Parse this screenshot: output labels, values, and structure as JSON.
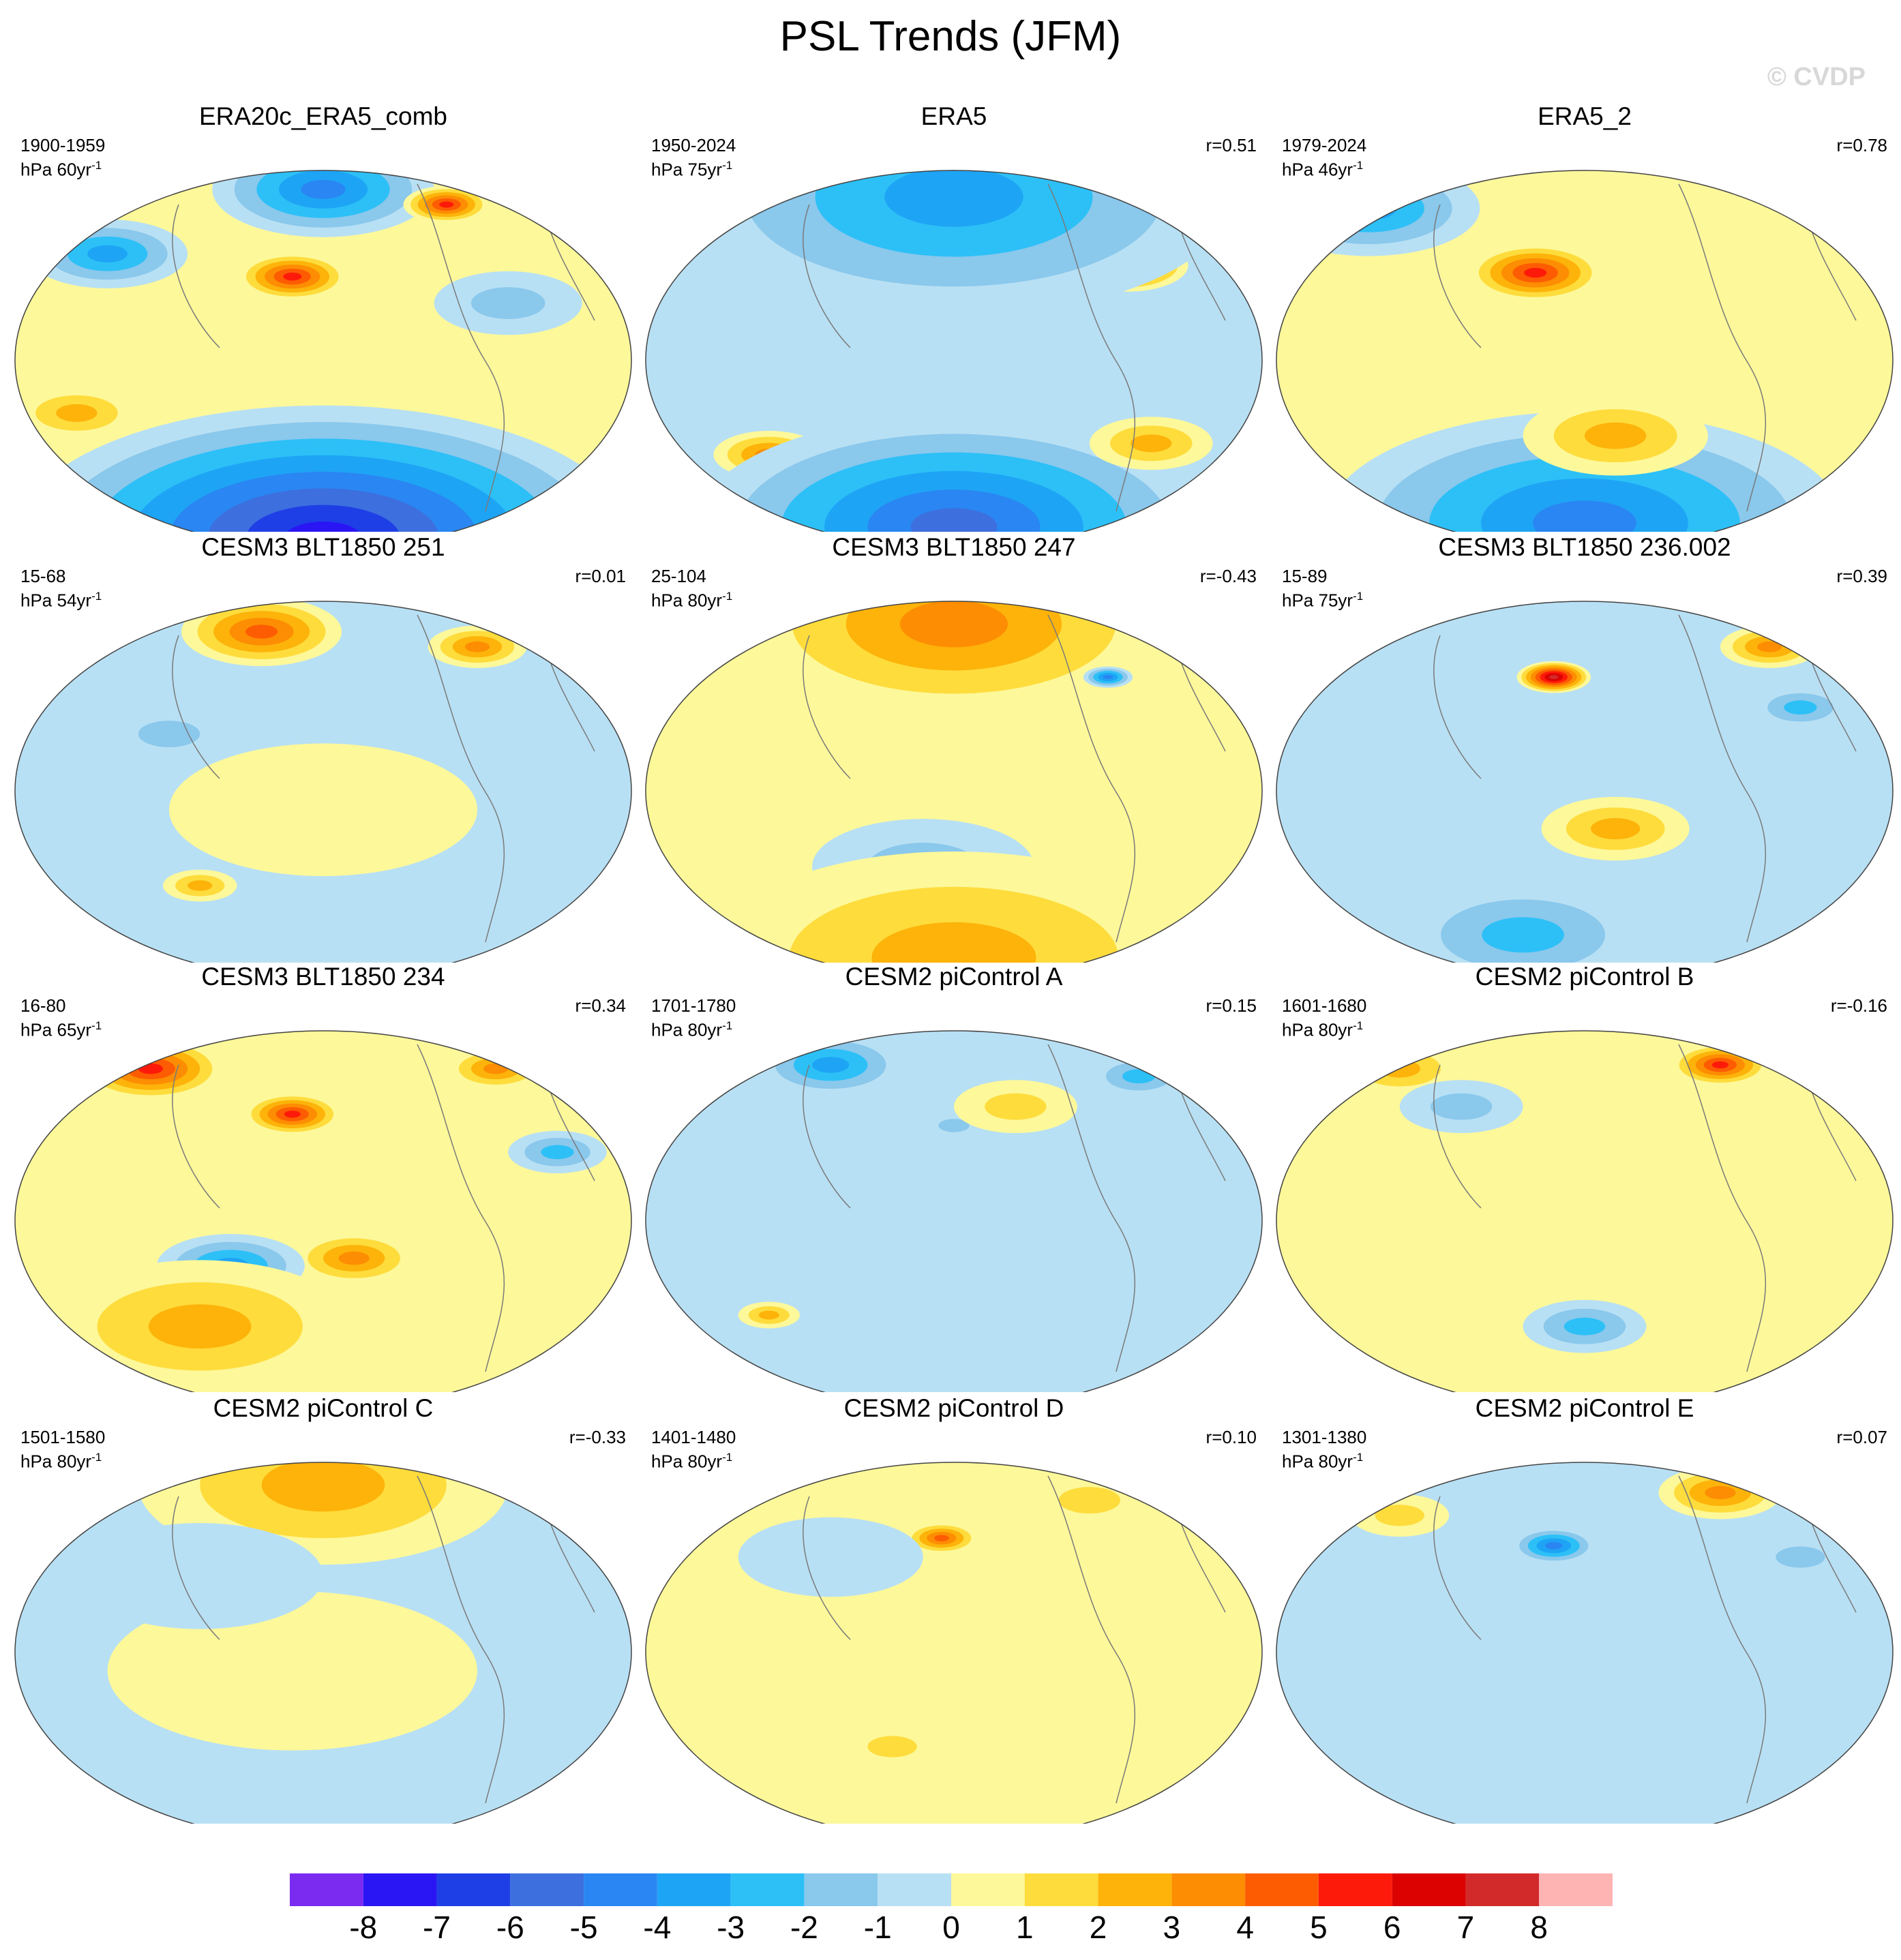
{
  "title": "PSL Trends (JFM)",
  "watermark": "© CVDP",
  "panels": [
    {
      "title": "ERA20c_ERA5_comb",
      "years": "1900-1959",
      "units_prefix": "hPa 60yr",
      "units_sup": "-1",
      "r": ""
    },
    {
      "title": "ERA5",
      "years": "1950-2024",
      "units_prefix": "hPa 75yr",
      "units_sup": "-1",
      "r": "r=0.51"
    },
    {
      "title": "ERA5_2",
      "years": "1979-2024",
      "units_prefix": "hPa 46yr",
      "units_sup": "-1",
      "r": "r=0.78"
    },
    {
      "title": "CESM3 BLT1850 251",
      "years": "15-68",
      "units_prefix": "hPa 54yr",
      "units_sup": "-1",
      "r": "r=0.01"
    },
    {
      "title": "CESM3 BLT1850 247",
      "years": "25-104",
      "units_prefix": "hPa 80yr",
      "units_sup": "-1",
      "r": "r=-0.43"
    },
    {
      "title": "CESM3 BLT1850 236.002",
      "years": "15-89",
      "units_prefix": "hPa 75yr",
      "units_sup": "-1",
      "r": "r=0.39"
    },
    {
      "title": "CESM3 BLT1850 234",
      "years": "16-80",
      "units_prefix": "hPa 65yr",
      "units_sup": "-1",
      "r": "r=0.34"
    },
    {
      "title": "CESM2 piControl A",
      "years": "1701-1780",
      "units_prefix": "hPa 80yr",
      "units_sup": "-1",
      "r": "r=0.15"
    },
    {
      "title": "CESM2 piControl B",
      "years": "1601-1680",
      "units_prefix": "hPa 80yr",
      "units_sup": "-1",
      "r": "r=-0.16"
    },
    {
      "title": "CESM2 piControl C",
      "years": "1501-1580",
      "units_prefix": "hPa 80yr",
      "units_sup": "-1",
      "r": "r=-0.33"
    },
    {
      "title": "CESM2 piControl D",
      "years": "1401-1480",
      "units_prefix": "hPa 80yr",
      "units_sup": "-1",
      "r": "r=0.10"
    },
    {
      "title": "CESM2 piControl E",
      "years": "1301-1380",
      "units_prefix": "hPa 80yr",
      "units_sup": "-1",
      "r": "r=0.07"
    }
  ],
  "colorbar": {
    "labels": [
      "-8",
      "-7",
      "-6",
      "-5",
      "-4",
      "-3",
      "-2",
      "-1",
      "0",
      "1",
      "2",
      "3",
      "4",
      "5",
      "6",
      "7",
      "8"
    ],
    "colors": [
      "#7b2af0",
      "#2a16f5",
      "#1f3fe6",
      "#3d6fde",
      "#2a86f2",
      "#1ea4f5",
      "#2cc0f7",
      "#8ac8ec",
      "#b8e0f4",
      "#fdf89a",
      "#fedc3c",
      "#fdb30a",
      "#fd8d02",
      "#fd5c02",
      "#fe1a0a",
      "#dc0202",
      "#d22a2a",
      "#ffb4b4"
    ]
  },
  "anomalies": [
    [
      {
        "lon": 0.45,
        "lat": 0.28,
        "v": 6,
        "s": 0.09
      },
      {
        "lon": 0.5,
        "lat": 0.05,
        "v": -5,
        "s": 0.18
      },
      {
        "lon": 0.15,
        "lat": 0.22,
        "v": -4,
        "s": 0.13
      },
      {
        "lon": 0.7,
        "lat": 0.09,
        "v": 6,
        "s": 0.07
      },
      {
        "lon": 0.45,
        "lat": 0.75,
        "v": 5,
        "s": 0.12
      },
      {
        "lon": 0.1,
        "lat": 0.64,
        "v": 3,
        "s": 0.1
      },
      {
        "lon": 0.8,
        "lat": 0.35,
        "v": -2,
        "s": 0.12
      },
      {
        "lon": 0.5,
        "lat": 0.97,
        "v": -8,
        "s": 0.5
      }
    ],
    [
      {
        "lon": 0.78,
        "lat": 0.25,
        "v": 6,
        "s": 0.1
      },
      {
        "lon": 0.5,
        "lat": 0.07,
        "v": -4,
        "s": 0.45
      },
      {
        "lon": 0.2,
        "lat": 0.75,
        "v": 4,
        "s": 0.09
      },
      {
        "lon": 0.5,
        "lat": 0.94,
        "v": -6,
        "s": 0.42
      },
      {
        "lon": 0.82,
        "lat": 0.72,
        "v": 3,
        "s": 0.1
      }
    ],
    [
      {
        "lon": 0.42,
        "lat": 0.27,
        "v": 6,
        "s": 0.11
      },
      {
        "lon": 0.15,
        "lat": 0.1,
        "v": -4,
        "s": 0.18
      },
      {
        "lon": 0.5,
        "lat": 0.93,
        "v": -5,
        "s": 0.42
      },
      {
        "lon": 0.55,
        "lat": 0.7,
        "v": 3,
        "s": 0.15
      }
    ],
    [
      {
        "lon": 0.4,
        "lat": 0.08,
        "v": 5,
        "s": 0.13
      },
      {
        "lon": 0.75,
        "lat": 0.12,
        "v": 4,
        "s": 0.08
      },
      {
        "lon": 0.3,
        "lat": 0.75,
        "v": 3,
        "s": 0.06
      },
      {
        "lon": 0.25,
        "lat": 0.35,
        "v": -2,
        "s": 0.1
      },
      {
        "lon": 0.5,
        "lat": 0.55,
        "v": 1,
        "s": 0.25
      }
    ],
    [
      {
        "lon": 0.5,
        "lat": 0.06,
        "v": 4,
        "s": 0.35
      },
      {
        "lon": 0.75,
        "lat": 0.2,
        "v": -5,
        "s": 0.04
      },
      {
        "lon": 0.45,
        "lat": 0.7,
        "v": -2,
        "s": 0.18
      },
      {
        "lon": 0.5,
        "lat": 0.94,
        "v": 3,
        "s": 0.4
      }
    ],
    [
      {
        "lon": 0.45,
        "lat": 0.2,
        "v": 8,
        "s": 0.06
      },
      {
        "lon": 0.8,
        "lat": 0.12,
        "v": 4,
        "s": 0.08
      },
      {
        "lon": 0.55,
        "lat": 0.6,
        "v": 3,
        "s": 0.12
      },
      {
        "lon": 0.85,
        "lat": 0.28,
        "v": -3,
        "s": 0.08
      },
      {
        "lon": 0.4,
        "lat": 0.88,
        "v": -3,
        "s": 0.2
      }
    ],
    [
      {
        "lon": 0.22,
        "lat": 0.1,
        "v": 6,
        "s": 0.12
      },
      {
        "lon": 0.45,
        "lat": 0.22,
        "v": 6,
        "s": 0.08
      },
      {
        "lon": 0.78,
        "lat": 0.1,
        "v": 4,
        "s": 0.08
      },
      {
        "lon": 0.55,
        "lat": 0.6,
        "v": 4,
        "s": 0.1
      },
      {
        "lon": 0.35,
        "lat": 0.62,
        "v": -4,
        "s": 0.12
      },
      {
        "lon": 0.88,
        "lat": 0.32,
        "v": -3,
        "s": 0.08
      },
      {
        "lon": 0.3,
        "lat": 0.78,
        "v": 3,
        "s": 0.25
      }
    ],
    [
      {
        "lon": 0.3,
        "lat": 0.09,
        "v": -4,
        "s": 0.12
      },
      {
        "lon": 0.5,
        "lat": 0.25,
        "v": -2,
        "s": 0.05
      },
      {
        "lon": 0.6,
        "lat": 0.2,
        "v": 2,
        "s": 0.1
      },
      {
        "lon": 0.8,
        "lat": 0.12,
        "v": -3,
        "s": 0.08
      },
      {
        "lon": 0.2,
        "lat": 0.75,
        "v": 3,
        "s": 0.05
      }
    ],
    [
      {
        "lon": 0.72,
        "lat": 0.09,
        "v": 6,
        "s": 0.08
      },
      {
        "lon": 0.2,
        "lat": 0.1,
        "v": 3,
        "s": 0.1
      },
      {
        "lon": 0.5,
        "lat": 0.78,
        "v": -3,
        "s": 0.1
      },
      {
        "lon": 0.3,
        "lat": 0.2,
        "v": -2,
        "s": 0.1
      }
    ],
    [
      {
        "lon": 0.5,
        "lat": 0.06,
        "v": 3,
        "s": 0.3
      },
      {
        "lon": 0.45,
        "lat": 0.55,
        "v": 1,
        "s": 0.3
      },
      {
        "lon": 0.3,
        "lat": 0.3,
        "v": -1,
        "s": 0.2
      }
    ],
    [
      {
        "lon": 0.48,
        "lat": 0.2,
        "v": 5,
        "s": 0.06
      },
      {
        "lon": 0.72,
        "lat": 0.1,
        "v": 2,
        "s": 0.1
      },
      {
        "lon": 0.3,
        "lat": 0.25,
        "v": -1,
        "s": 0.15
      },
      {
        "lon": 0.4,
        "lat": 0.75,
        "v": 2,
        "s": 0.08
      }
    ],
    [
      {
        "lon": 0.45,
        "lat": 0.22,
        "v": -5,
        "s": 0.07
      },
      {
        "lon": 0.72,
        "lat": 0.08,
        "v": 4,
        "s": 0.1
      },
      {
        "lon": 0.2,
        "lat": 0.14,
        "v": 2,
        "s": 0.08
      },
      {
        "lon": 0.85,
        "lat": 0.25,
        "v": -2,
        "s": 0.08
      }
    ]
  ]
}
